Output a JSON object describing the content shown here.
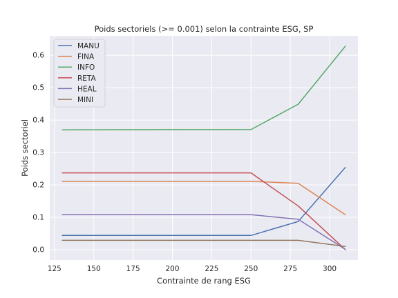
{
  "chart_data": {
    "type": "line",
    "title": "Poids sectoriels (>= 0.001) selon la contrainte ESG, SP",
    "xlabel": "Contrainte de rang ESG",
    "ylabel": "Poids sectoriel",
    "x": [
      130,
      250,
      280,
      310
    ],
    "xlim": [
      122,
      318
    ],
    "ylim": [
      -0.032,
      0.66
    ],
    "xticks": [
      125,
      150,
      175,
      200,
      225,
      250,
      275,
      300
    ],
    "yticks": [
      0.0,
      0.1,
      0.2,
      0.3,
      0.4,
      0.5,
      0.6
    ],
    "ytick_labels": [
      "0.0",
      "0.1",
      "0.2",
      "0.3",
      "0.4",
      "0.5",
      "0.6"
    ],
    "grid": true,
    "legend_position": "top-left",
    "series": [
      {
        "name": "MANU",
        "color": "#4c72b0",
        "values": [
          0.044,
          0.044,
          0.087,
          0.254
        ]
      },
      {
        "name": "FINA",
        "color": "#dd8452",
        "values": [
          0.211,
          0.211,
          0.205,
          0.108
        ]
      },
      {
        "name": "INFO",
        "color": "#55a868",
        "values": [
          0.37,
          0.371,
          0.449,
          0.628
        ]
      },
      {
        "name": "RETA",
        "color": "#c44e52",
        "values": [
          0.237,
          0.237,
          0.135,
          0.0
        ]
      },
      {
        "name": "HEAL",
        "color": "#8172b3",
        "values": [
          0.108,
          0.108,
          0.094,
          0.001
        ]
      },
      {
        "name": "MINI",
        "color": "#937860",
        "values": [
          0.029,
          0.029,
          0.029,
          0.01
        ]
      }
    ]
  }
}
